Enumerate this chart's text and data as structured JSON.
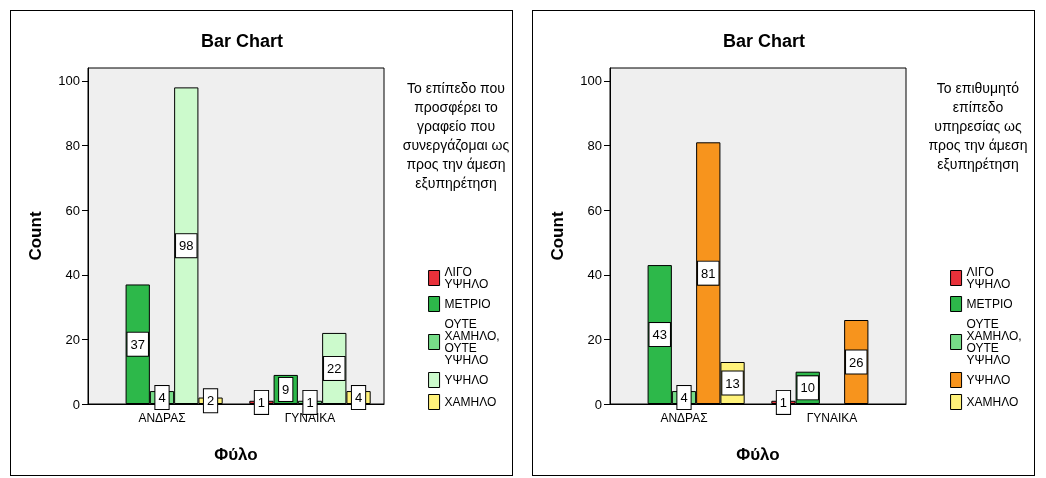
{
  "chart_data": [
    {
      "type": "bar",
      "title": "Bar Chart",
      "xlabel": "Φύλο",
      "ylabel": "Count",
      "legend_title": "Το επίπεδο που προσφέρει το γραφείο που συνεργάζομαι ως προς την άμεση εξυπηρέτηση",
      "categories": [
        "ΑΝΔΡΑΣ",
        "ΓΥΝΑΙΚΑ"
      ],
      "ylim": [
        0,
        104
      ],
      "yticks": [
        0,
        20,
        40,
        60,
        80,
        100
      ],
      "grid": false,
      "legend": "right",
      "data_labels": true,
      "series": [
        {
          "name": "ΛΙΓΟ ΥΨΗΛΟ",
          "color": "#e8313a",
          "values": [
            null,
            1
          ]
        },
        {
          "name": "ΜΕΤΡΙΟ",
          "color": "#2db84a",
          "values": [
            37,
            9
          ]
        },
        {
          "name": "ΟΥΤΕ ΧΑΜΗΛΟ, ΟΥΤΕ ΥΨΗΛΟ",
          "color": "#77dd88",
          "values": [
            4,
            1
          ]
        },
        {
          "name": "ΥΨΗΛΟ",
          "color": "#ccfacc",
          "values": [
            98,
            22
          ]
        },
        {
          "name": "ΧΑΜΗΛΟ",
          "color": "#fff27a",
          "values": [
            2,
            4
          ]
        }
      ]
    },
    {
      "type": "bar",
      "title": "Bar Chart",
      "xlabel": "Φύλο",
      "ylabel": "Count",
      "legend_title": "Το επιθυμητό επίπεδο υπηρεσίας ως προς την άμεση εξυπηρέτηση",
      "categories": [
        "ΑΝΔΡΑΣ",
        "ΓΥΝΑΙΚΑ"
      ],
      "ylim": [
        0,
        104
      ],
      "yticks": [
        0,
        20,
        40,
        60,
        80,
        100
      ],
      "grid": false,
      "legend": "right",
      "data_labels": true,
      "series": [
        {
          "name": "ΛΙΓΟ ΥΨΗΛΟ",
          "color": "#e8313a",
          "values": [
            null,
            1
          ]
        },
        {
          "name": "ΜΕΤΡΙΟ",
          "color": "#2db84a",
          "values": [
            43,
            10
          ]
        },
        {
          "name": "ΟΥΤΕ ΧΑΜΗΛΟ, ΟΥΤΕ ΥΨΗΛΟ",
          "color": "#77dd88",
          "values": [
            4,
            null
          ]
        },
        {
          "name": "ΥΨΗΛΟ",
          "color": "#f7941d",
          "values": [
            81,
            26
          ]
        },
        {
          "name": "ΧΑΜΗΛΟ",
          "color": "#fff27a",
          "values": [
            13,
            null
          ]
        }
      ]
    }
  ]
}
